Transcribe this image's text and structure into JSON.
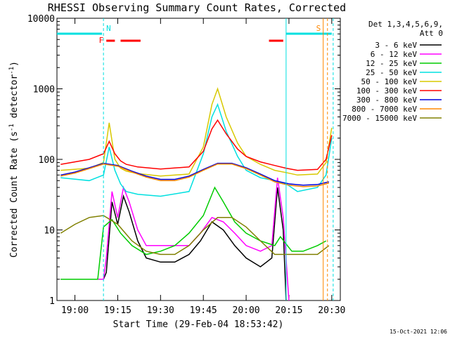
{
  "chart_data": {
    "type": "line",
    "title": "RHESSI Observing Summary Count Rates, Corrected",
    "xlabel": "Start Time (29-Feb-04 18:53:42)",
    "ylabel": "Corrected Count Rate (s",
    "ylabel_sup1": "-1",
    "ylabel_mid": " detector",
    "ylabel_sup2": "-1",
    "ylabel_end": ")",
    "footer": "15-Oct-2021 12:06",
    "y_scale": "log",
    "ylim": [
      1,
      10000
    ],
    "xlim": [
      "18:53:42",
      "20:33"
    ],
    "x_ticks": [
      "19:00",
      "19:15",
      "19:30",
      "19:45",
      "20:00",
      "20:15",
      "20:30"
    ],
    "y_ticks": [
      "1",
      "10",
      "100",
      "1000",
      "10000"
    ],
    "legend_header": [
      "Det 1,3,4,5,6,9,",
      "Att 0"
    ],
    "legend_position": "top-right",
    "series": [
      {
        "name": "3 - 6 keV",
        "color": "#000000",
        "x": [
          "18:55",
          "19:10",
          "19:11",
          "19:13",
          "19:15",
          "19:17",
          "19:19",
          "19:22",
          "19:25",
          "19:30",
          "19:35",
          "19:40",
          "19:44",
          "19:48",
          "19:52",
          "19:56",
          "20:00",
          "20:05",
          "20:09",
          "20:11",
          "20:13",
          "20:14"
        ],
        "y": [
          2,
          2,
          2.5,
          25,
          12,
          30,
          18,
          7,
          4,
          3.5,
          3.5,
          4.5,
          7,
          13,
          10,
          6,
          4,
          3,
          4,
          40,
          10,
          1
        ]
      },
      {
        "name": "6 - 12 keV",
        "color": "#ff00ff",
        "x": [
          "18:55",
          "19:10",
          "19:11",
          "19:13",
          "19:15",
          "19:17",
          "19:19",
          "19:22",
          "19:25",
          "19:30",
          "19:35",
          "19:40",
          "19:44",
          "19:48",
          "19:52",
          "19:56",
          "20:00",
          "20:05",
          "20:09",
          "20:11",
          "20:13",
          "20:15"
        ],
        "y": [
          2,
          2,
          4,
          35,
          15,
          40,
          25,
          10,
          6,
          6,
          6,
          6,
          9,
          15,
          13,
          9,
          6,
          5,
          6,
          55,
          15,
          1
        ]
      },
      {
        "name": "12 - 25 keV",
        "color": "#00cc00",
        "x": [
          "18:55",
          "19:08",
          "19:10",
          "19:13",
          "19:16",
          "19:20",
          "19:25",
          "19:30",
          "19:35",
          "19:40",
          "19:45",
          "19:49",
          "19:52",
          "19:56",
          "20:00",
          "20:05",
          "20:10",
          "20:12",
          "20:16",
          "20:20",
          "20:25",
          "20:28"
        ],
        "y": [
          2,
          2,
          11,
          14,
          9,
          6,
          4.5,
          5,
          6,
          9,
          16,
          40,
          25,
          13,
          9,
          7,
          6,
          8,
          5,
          5,
          6,
          7
        ]
      },
      {
        "name": "25 - 50 keV",
        "color": "#00e0e0",
        "x": [
          "18:55",
          "19:05",
          "19:10",
          "19:12",
          "19:14",
          "19:16",
          "19:18",
          "19:22",
          "19:30",
          "19:40",
          "19:45",
          "19:48",
          "19:50",
          "19:53",
          "19:57",
          "20:00",
          "20:05",
          "20:10",
          "20:14",
          "20:18",
          "20:25",
          "20:28",
          "20:30"
        ],
        "y": [
          55,
          50,
          60,
          150,
          70,
          45,
          35,
          32,
          30,
          35,
          120,
          400,
          600,
          250,
          110,
          70,
          55,
          50,
          45,
          35,
          40,
          60,
          200
        ]
      },
      {
        "name": "50 - 100 keV",
        "color": "#d8c800",
        "x": [
          "18:55",
          "19:05",
          "19:10",
          "19:12",
          "19:14",
          "19:16",
          "19:18",
          "19:22",
          "19:30",
          "19:40",
          "19:45",
          "19:48",
          "19:50",
          "19:53",
          "19:57",
          "20:00",
          "20:05",
          "20:10",
          "20:14",
          "20:18",
          "20:25",
          "20:28",
          "20:30"
        ],
        "y": [
          70,
          75,
          90,
          330,
          100,
          75,
          68,
          63,
          58,
          62,
          150,
          600,
          1000,
          400,
          170,
          110,
          85,
          70,
          65,
          60,
          62,
          90,
          280
        ]
      },
      {
        "name": "100 - 300 keV",
        "color": "#ff0000",
        "x": [
          "18:55",
          "19:05",
          "19:10",
          "19:12",
          "19:14",
          "19:16",
          "19:18",
          "19:22",
          "19:30",
          "19:40",
          "19:45",
          "19:48",
          "19:50",
          "19:53",
          "19:57",
          "20:00",
          "20:05",
          "20:10",
          "20:14",
          "20:18",
          "20:25",
          "20:28",
          "20:30"
        ],
        "y": [
          85,
          100,
          120,
          180,
          120,
          95,
          85,
          78,
          73,
          78,
          130,
          270,
          360,
          230,
          140,
          110,
          92,
          82,
          75,
          70,
          72,
          100,
          220
        ]
      },
      {
        "name": "300 - 800 keV",
        "color": "#0000dd",
        "x": [
          "18:55",
          "19:00",
          "19:05",
          "19:10",
          "19:15",
          "19:20",
          "19:25",
          "19:30",
          "19:35",
          "19:40",
          "19:45",
          "19:50",
          "19:55",
          "20:00",
          "20:05",
          "20:10",
          "20:15",
          "20:20",
          "20:25",
          "20:29"
        ],
        "y": [
          60,
          66,
          76,
          88,
          82,
          68,
          58,
          52,
          52,
          58,
          72,
          88,
          88,
          76,
          62,
          50,
          45,
          43,
          44,
          48
        ]
      },
      {
        "name": "800 - 7000 keV",
        "color": "#ff8800",
        "x": [
          "18:55",
          "19:00",
          "19:05",
          "19:10",
          "19:15",
          "19:20",
          "19:25",
          "19:30",
          "19:35",
          "19:40",
          "19:45",
          "19:50",
          "19:55",
          "20:00",
          "20:05",
          "20:10",
          "20:15",
          "20:20",
          "20:25",
          "20:29"
        ],
        "y": [
          58,
          64,
          74,
          86,
          80,
          66,
          56,
          50,
          50,
          56,
          70,
          86,
          86,
          74,
          60,
          48,
          43,
          41,
          42,
          46
        ]
      },
      {
        "name": "7000 - 15000 keV",
        "color": "#808000",
        "x": [
          "18:55",
          "19:00",
          "19:05",
          "19:10",
          "19:15",
          "19:20",
          "19:25",
          "19:30",
          "19:35",
          "19:40",
          "19:45",
          "19:50",
          "19:55",
          "20:00",
          "20:05",
          "20:10",
          "20:15",
          "20:20",
          "20:25",
          "20:29"
        ],
        "y": [
          9,
          12,
          15,
          16,
          12,
          7,
          5,
          4.5,
          4.5,
          6,
          10,
          15,
          15,
          11,
          7,
          4.5,
          4.5,
          4.5,
          4.5,
          6
        ]
      }
    ],
    "flags": [
      {
        "label": "",
        "color": "#00e0e0",
        "x0": "18:53:42",
        "x1": "19:09:30",
        "level": "upper"
      },
      {
        "label": "",
        "color": "#00e0e0",
        "x0": "20:14",
        "x1": "20:30",
        "level": "upper"
      },
      {
        "label": "F",
        "color": "#ff0000",
        "x0": "19:11",
        "x1": "19:14",
        "level": "lower"
      },
      {
        "label": "",
        "color": "#ff0000",
        "x0": "19:16",
        "x1": "19:23",
        "level": "lower"
      },
      {
        "label": "",
        "color": "#ff0000",
        "x0": "20:08",
        "x1": "20:13",
        "level": "lower"
      }
    ],
    "markers": [
      {
        "label": "N",
        "color": "#00e0e0",
        "x": "19:10",
        "style": "dashed"
      },
      {
        "label": "",
        "color": "#00e0e0",
        "x": "20:14",
        "style": "solid"
      },
      {
        "label": "S",
        "color": "#ff8800",
        "x": "20:27",
        "style": "solid"
      },
      {
        "label": "",
        "color": "#ff8800",
        "x": "20:28.5",
        "style": "dashed"
      },
      {
        "label": "",
        "color": "#00e0e0",
        "x": "20:30.5",
        "style": "dashed"
      }
    ]
  }
}
